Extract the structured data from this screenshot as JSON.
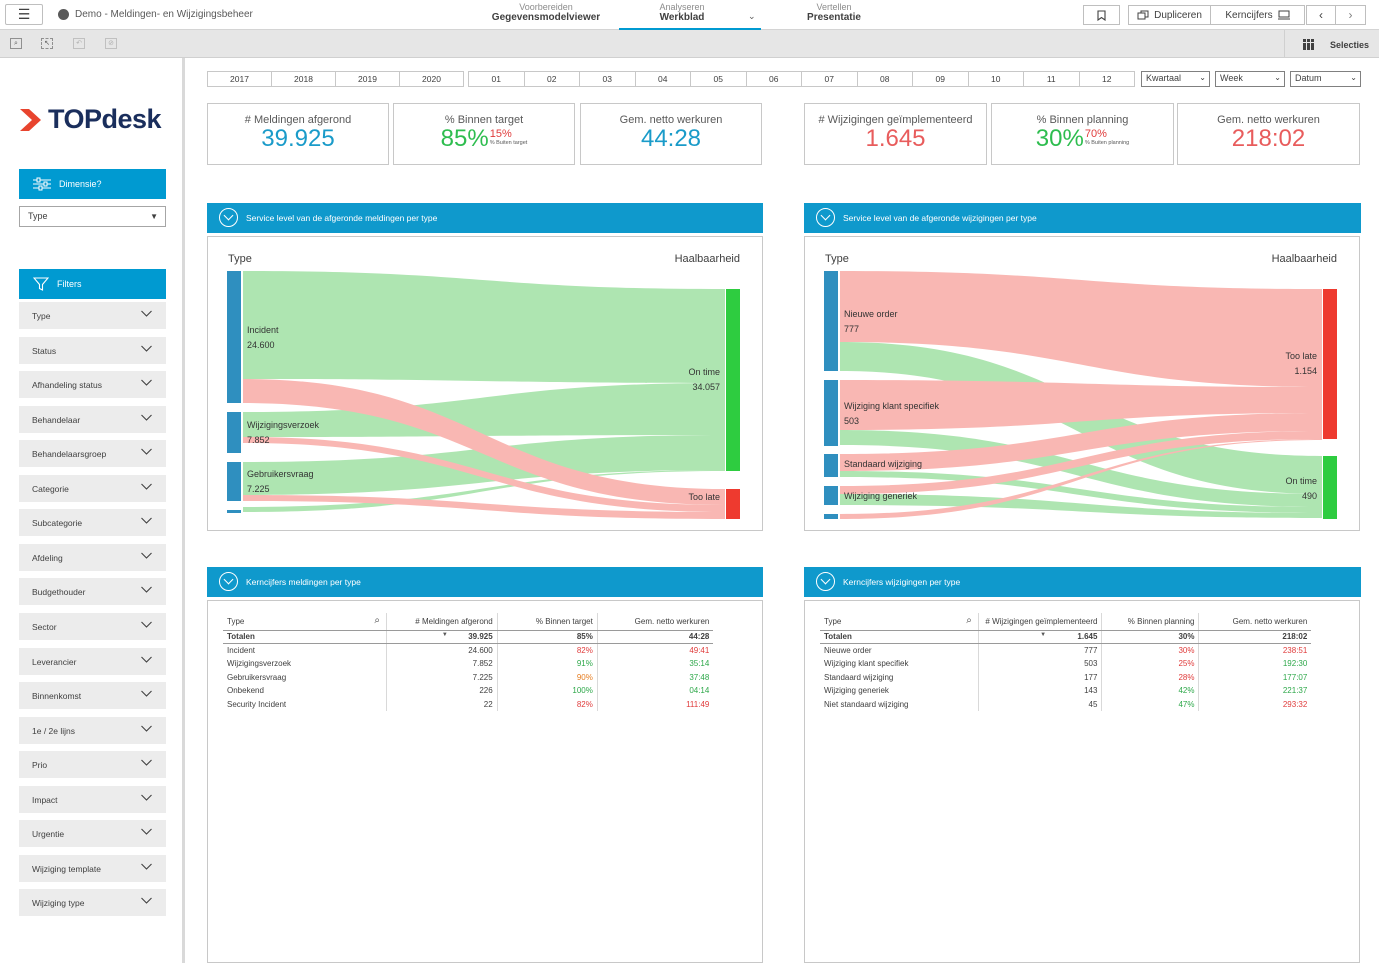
{
  "app": {
    "title": "Demo - Meldingen- en Wijzigingsbeheer"
  },
  "nav": [
    {
      "top": "Voorbereiden",
      "bottom": "Gegevensmodelviewer"
    },
    {
      "top": "Analyseren",
      "bottom": "Werkblad"
    },
    {
      "top": "Vertellen",
      "bottom": "Presentatie"
    }
  ],
  "toolbar": {
    "duplicate": "Dupliceren",
    "kerncijfers": "Kerncijfers",
    "selections": "Selecties"
  },
  "sidebar": {
    "logo": "TOPdesk",
    "dimension_button": "Dimensie?",
    "dimension_value": "Type",
    "filters_button": "Filters",
    "filters": [
      "Type",
      "Status",
      "Afhandeling status",
      "Behandelaar",
      "Behandelaarsgroep",
      "Categorie",
      "Subcategorie",
      "Afdeling",
      "Budgethouder",
      "Sector",
      "Leverancier",
      "Binnenkomst",
      "1e / 2e lijns",
      "Prio",
      "Impact",
      "Urgentie",
      "Wijziging template",
      "Wijziging type"
    ]
  },
  "timeline": {
    "years": [
      "2017",
      "2018",
      "2019",
      "2020"
    ],
    "months": [
      "01",
      "02",
      "03",
      "04",
      "05",
      "06",
      "07",
      "08",
      "09",
      "10",
      "11",
      "12"
    ],
    "dropdowns": [
      "Kwartaal",
      "Week",
      "Datum"
    ]
  },
  "kpis": [
    {
      "label": "# Meldingen afgerond",
      "value": "39.925",
      "color": "#1a9bc9"
    },
    {
      "label": "% Binnen target",
      "value": "85%",
      "color": "#2ebd4f",
      "sub_pct": "15%",
      "sub_label": "% Buiten target"
    },
    {
      "label": "Gem. netto werkuren",
      "value": "44:28",
      "color": "#1a9bc9"
    },
    {
      "label": "# Wijzigingen geïmplementeerd",
      "value": "1.645",
      "color": "#e85c5c"
    },
    {
      "label": "% Binnen planning",
      "value": "30%",
      "color": "#2ebd4f",
      "sub_pct": "70%",
      "sub_label": "% Buiten planning"
    },
    {
      "label": "Gem. netto werkuren",
      "value": "218:02",
      "color": "#e85c5c"
    }
  ],
  "sankey_left": {
    "title": "Service level van de afgeronde meldingen per type",
    "col_left": "Type",
    "col_right": "Haalbaarheid",
    "nodes": [
      {
        "name": "Incident",
        "value": "24.600"
      },
      {
        "name": "Wijzigingsverzoek",
        "value": "7.852"
      },
      {
        "name": "Gebruikersvraag",
        "value": "7.225"
      }
    ],
    "targets": [
      {
        "name": "On time",
        "value": "34.057"
      },
      {
        "name": "Too late",
        "value": ""
      }
    ]
  },
  "sankey_right": {
    "title": "Service level van de afgeronde wijzigingen per type",
    "col_left": "Type",
    "col_right": "Haalbaarheid",
    "nodes": [
      {
        "name": "Nieuwe order",
        "value": "777"
      },
      {
        "name": "Wijziging klant specifiek",
        "value": "503"
      },
      {
        "name": "Standaard wijziging",
        "value": ""
      },
      {
        "name": "Wijziging generiek",
        "value": ""
      }
    ],
    "targets": [
      {
        "name": "Too late",
        "value": "1.154"
      },
      {
        "name": "On time",
        "value": "490"
      }
    ]
  },
  "table_left": {
    "title": "Kerncijfers meldingen per type",
    "headers": [
      "Type",
      "# Meldingen afgerond",
      "% Binnen target",
      "Gem. netto werkuren"
    ],
    "totals": [
      "Totalen",
      "39.925",
      "85%",
      "44:28"
    ],
    "rows": [
      [
        "Incident",
        "24.600",
        "82%",
        "49:41"
      ],
      [
        "Wijzigingsverzoek",
        "7.852",
        "91%",
        "35:14"
      ],
      [
        "Gebruikersvraag",
        "7.225",
        "90%",
        "37:48"
      ],
      [
        "Onbekend",
        "226",
        "100%",
        "04:14"
      ],
      [
        "Security Incident",
        "22",
        "82%",
        "111:49"
      ]
    ],
    "pct_colors": [
      "r",
      "g",
      "o",
      "g",
      "r"
    ],
    "time_colors": [
      "r",
      "g",
      "g",
      "g",
      "r"
    ]
  },
  "table_right": {
    "title": "Kerncijfers wijzigingen per type",
    "headers": [
      "Type",
      "# Wijzigingen geïmplementeerd",
      "% Binnen planning",
      "Gem. netto werkuren"
    ],
    "totals": [
      "Totalen",
      "1.645",
      "30%",
      "218:02"
    ],
    "rows": [
      [
        "Nieuwe order",
        "777",
        "30%",
        "238:51"
      ],
      [
        "Wijziging klant specifiek",
        "503",
        "25%",
        "192:30"
      ],
      [
        "Standaard wijziging",
        "177",
        "28%",
        "177:07"
      ],
      [
        "Wijziging generiek",
        "143",
        "42%",
        "221:37"
      ],
      [
        "Niet standaard wijziging",
        "45",
        "47%",
        "293:32"
      ]
    ],
    "pct_colors": [
      "r",
      "r",
      "r",
      "g",
      "g"
    ],
    "time_colors": [
      "r",
      "g",
      "g",
      "g",
      "r"
    ]
  }
}
